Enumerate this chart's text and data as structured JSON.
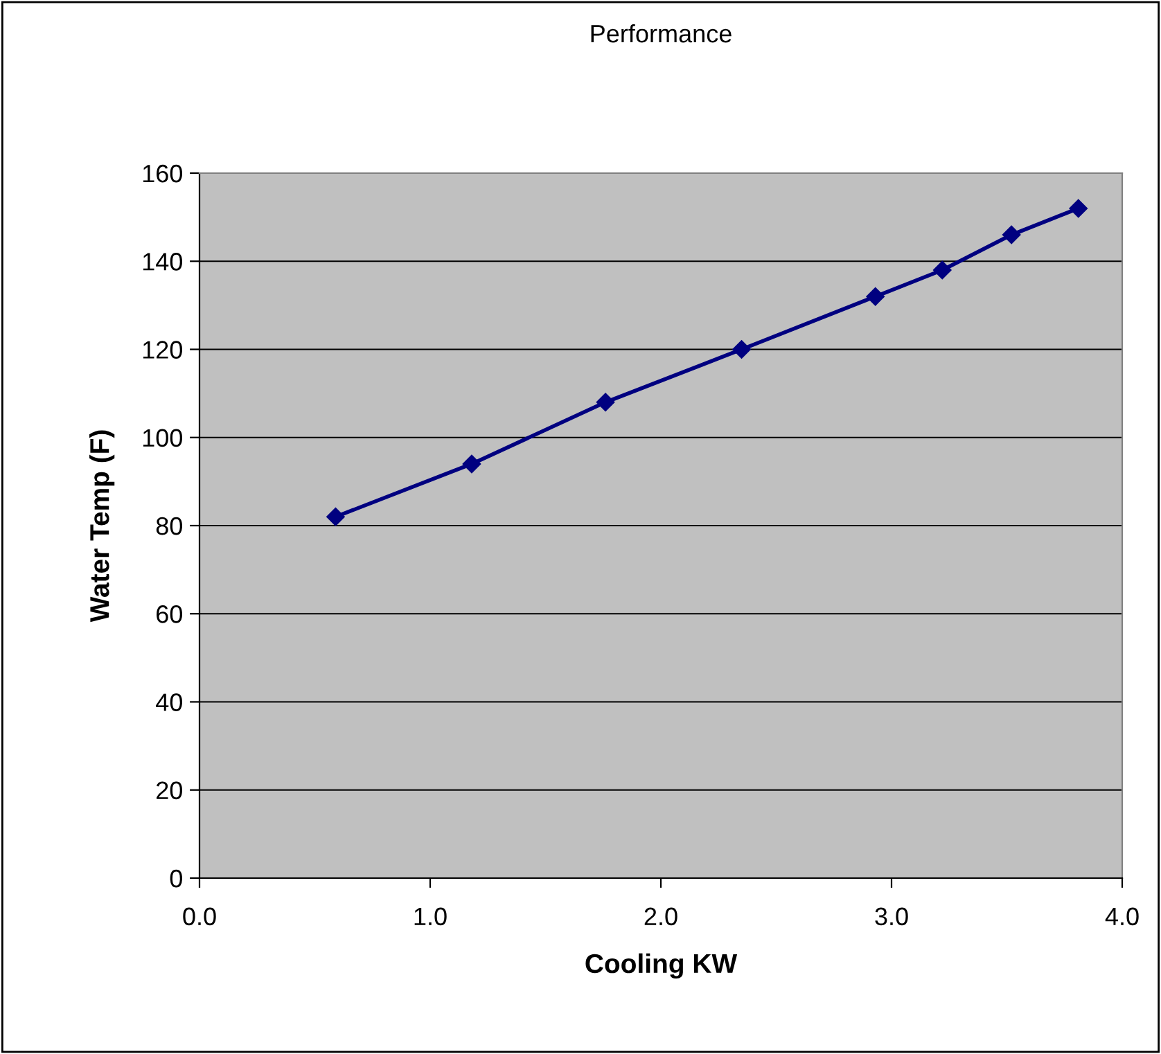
{
  "chart_data": {
    "type": "line",
    "title": "Performance",
    "xlabel": "Cooling KW",
    "ylabel": "Water Temp (F)",
    "x": [
      0.59,
      1.18,
      1.76,
      2.35,
      2.93,
      3.22,
      3.52,
      3.81
    ],
    "series": [
      {
        "color": "#000080",
        "values": [
          82,
          94,
          108,
          120,
          132,
          138,
          146,
          152
        ]
      }
    ],
    "xlim": [
      0,
      4
    ],
    "xticks": [
      {
        "value": 0,
        "label": "0.0"
      },
      {
        "value": 1,
        "label": "1.0"
      },
      {
        "value": 2,
        "label": "2.0"
      },
      {
        "value": 3,
        "label": "3.0"
      },
      {
        "value": 4,
        "label": "4.0"
      }
    ],
    "ylim": [
      0,
      160
    ],
    "yticks": [
      0,
      20,
      40,
      60,
      80,
      100,
      120,
      140,
      160
    ],
    "grid": "y",
    "marker": "diamond",
    "line_style": "solid"
  }
}
